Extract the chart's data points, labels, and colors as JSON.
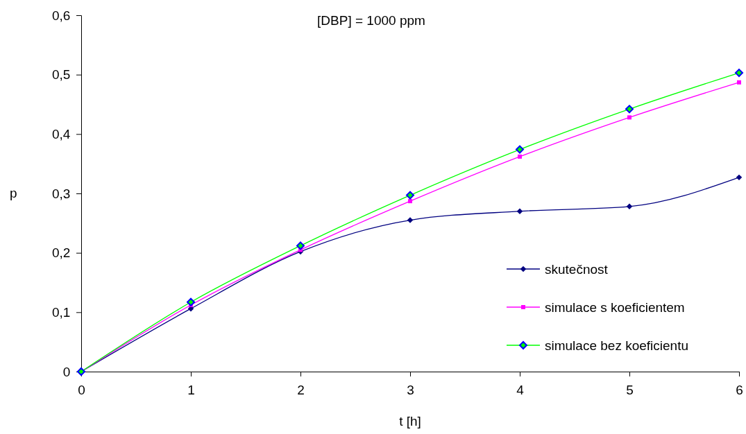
{
  "chart_data": {
    "type": "line",
    "title": "[DBP] = 1000 ppm",
    "xlabel": "t [h]",
    "ylabel": "p",
    "x": [
      0,
      1,
      2,
      3,
      4,
      5,
      6
    ],
    "series": [
      {
        "name": "skutečnost",
        "color": "#000080",
        "marker": "diamond",
        "values": [
          0,
          0.106,
          0.202,
          0.255,
          0.27,
          0.278,
          0.327
        ]
      },
      {
        "name": "simulace s koeficientem",
        "color": "#ff00ff",
        "marker": "square",
        "values": [
          0,
          0.112,
          0.205,
          0.287,
          0.362,
          0.428,
          0.487
        ]
      },
      {
        "name": "simulace bez koeficientu",
        "color": "#00ff00",
        "marker": "diamond",
        "values": [
          0,
          0.117,
          0.212,
          0.297,
          0.374,
          0.442,
          0.503
        ]
      }
    ],
    "xlim": [
      0,
      6
    ],
    "xticks": [
      0,
      1,
      2,
      3,
      4,
      5,
      6
    ],
    "ylim": [
      0,
      0.6
    ],
    "yticks": [
      0,
      {
        "value": 0.1,
        "label": "0,1"
      },
      {
        "value": 0.2,
        "label": "0,2"
      },
      {
        "value": 0.3,
        "label": "0,3"
      },
      {
        "value": 0.4,
        "label": "0,4"
      },
      {
        "value": 0.5,
        "label": "0,5"
      },
      {
        "value": 0.6,
        "label": "0,6"
      }
    ],
    "grid": false,
    "legend": "bottom right",
    "line_style": "solid"
  }
}
